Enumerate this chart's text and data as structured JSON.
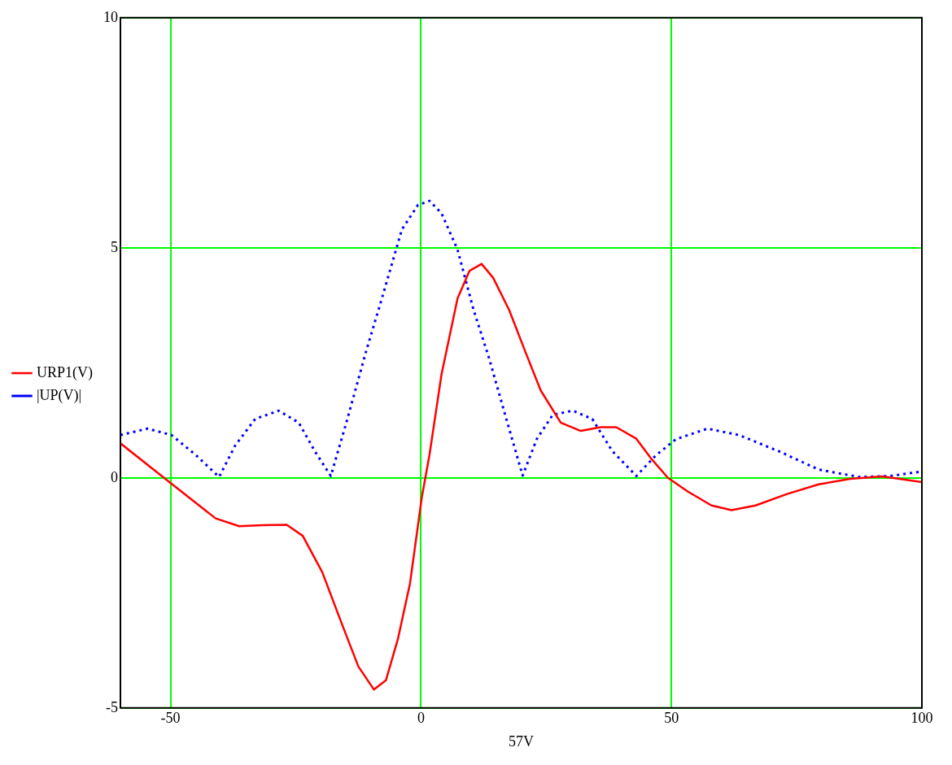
{
  "chart_data": {
    "type": "line",
    "xlabel": "57V",
    "xlim": [
      -60,
      100
    ],
    "xticks": [
      -50,
      0,
      50,
      100
    ],
    "ylim": [
      -5,
      10
    ],
    "yticks": [
      -5,
      0,
      5,
      10
    ],
    "grid": true,
    "legend": "left",
    "series": [
      {
        "name": "URP1(V)",
        "color": "#ff0000",
        "line_style": "solid",
        "x": [
          -60,
          -51.3,
          -41,
          -36.3,
          -31.6,
          -26.8,
          -23.6,
          -19.7,
          -15.7,
          -12.5,
          -9.4,
          -7,
          -4.6,
          -2.2,
          0.2,
          1.7,
          4.1,
          7.3,
          9.7,
          12.1,
          14.4,
          17.6,
          20.8,
          23.9,
          27.9,
          31.9,
          35.8,
          39,
          43,
          46.1,
          49.3,
          53.3,
          58,
          62,
          66.8,
          73.1,
          79.4,
          85.7,
          92.1,
          100
        ],
        "values": [
          0.75,
          0,
          -0.88,
          -1.05,
          -1.03,
          -1.02,
          -1.26,
          -2.05,
          -3.2,
          -4.1,
          -4.6,
          -4.4,
          -3.5,
          -2.3,
          -0.4,
          0.5,
          2.25,
          3.9,
          4.5,
          4.65,
          4.35,
          3.65,
          2.75,
          1.9,
          1.2,
          1.02,
          1.1,
          1.1,
          0.85,
          0.4,
          0,
          -0.3,
          -0.6,
          -0.7,
          -0.6,
          -0.35,
          -0.14,
          -0.02,
          0.03,
          -0.09
        ]
      },
      {
        "name": "|UP(V)|",
        "color": "#0000ff",
        "line_style": "dotted",
        "x": [
          -60,
          -54.6,
          -49.8,
          -45,
          -40.3,
          -37.1,
          -33.1,
          -28.4,
          -24.4,
          -21.2,
          -18,
          -14.9,
          -10.9,
          -7.8,
          -3.8,
          -0.6,
          1.7,
          4.1,
          7.3,
          10.5,
          13.6,
          16.8,
          20.3,
          23.1,
          26.3,
          30.3,
          34.2,
          38.2,
          43,
          46.9,
          50.9,
          57.2,
          63.5,
          71.4,
          79.4,
          87.4,
          93.7,
          100
        ],
        "values": [
          0.93,
          1.07,
          0.93,
          0.5,
          0.02,
          0.7,
          1.28,
          1.46,
          1.2,
          0.58,
          0.04,
          1.2,
          2.77,
          3.9,
          5.4,
          5.93,
          6.02,
          5.75,
          4.96,
          3.65,
          2.6,
          1.37,
          0.05,
          0.84,
          1.37,
          1.46,
          1.28,
          0.58,
          0.04,
          0.49,
          0.84,
          1.07,
          0.93,
          0.58,
          0.18,
          0.02,
          0.04,
          0.14
        ]
      }
    ]
  }
}
